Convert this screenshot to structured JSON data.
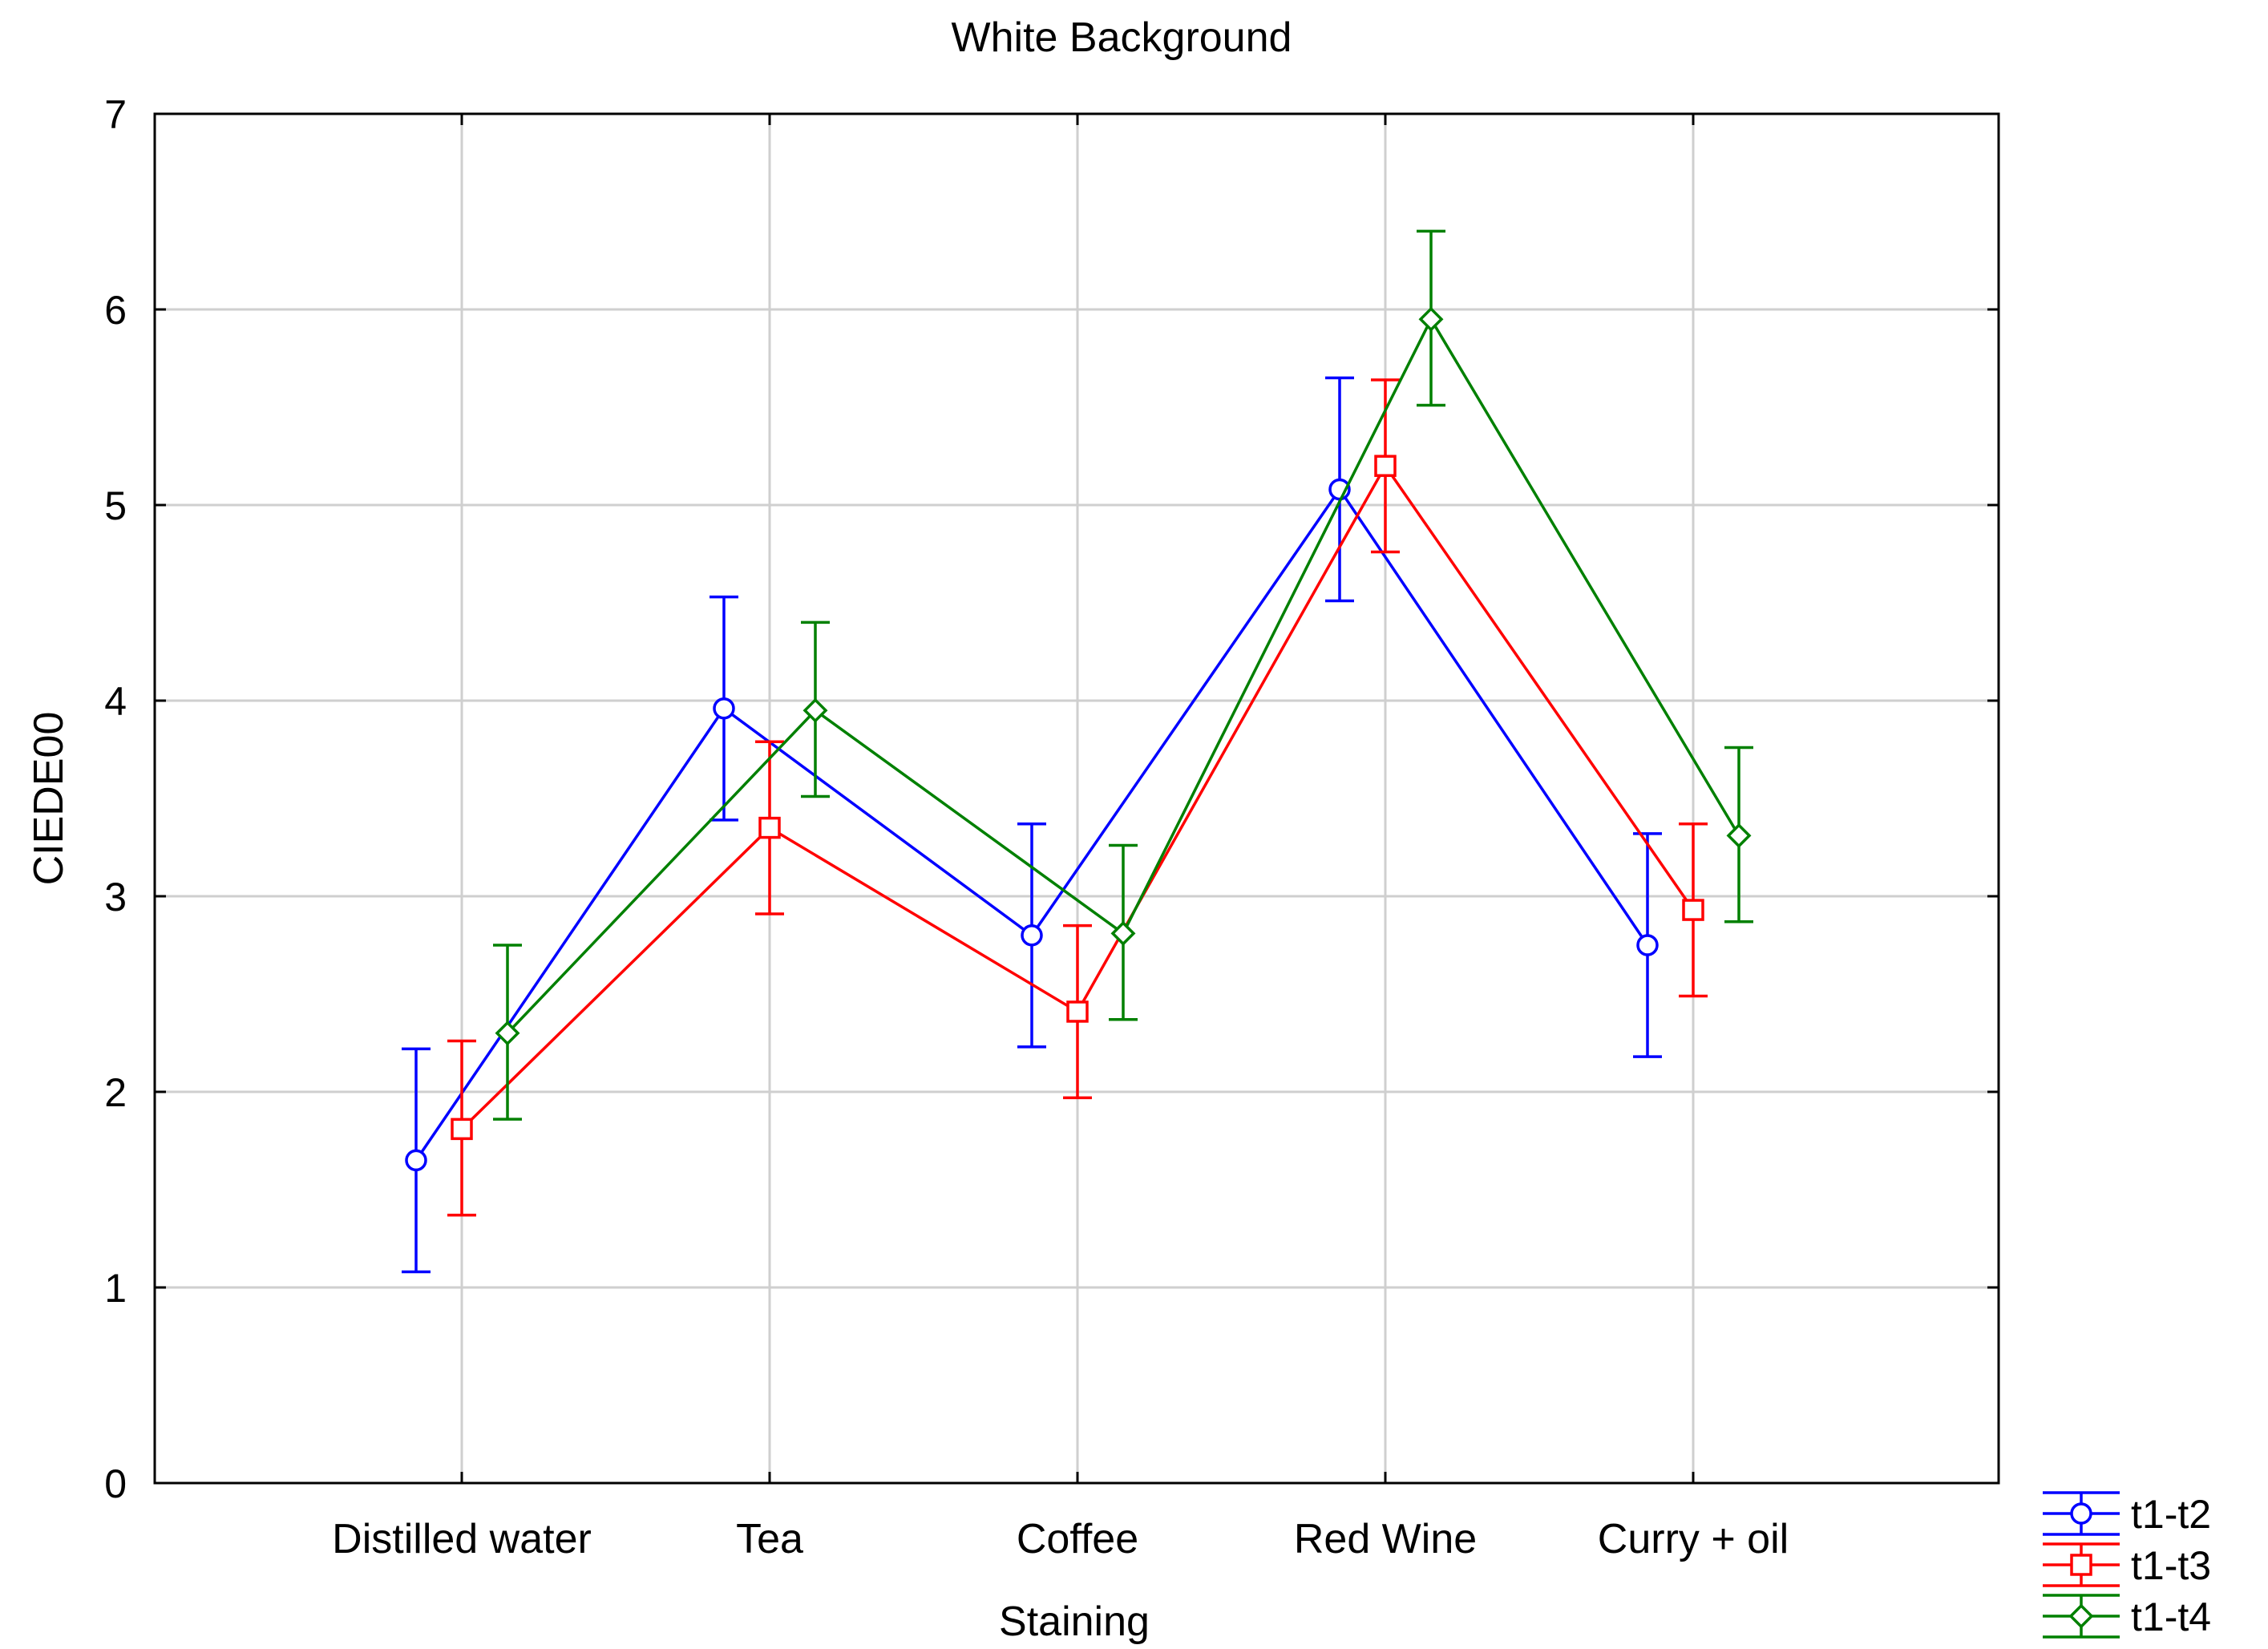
{
  "chart_data": {
    "type": "line",
    "title": "White Background",
    "xlabel": "Staining",
    "ylabel": "CIEDE00",
    "ylim": [
      0,
      7
    ],
    "yticks": [
      "0",
      "1",
      "2",
      "3",
      "4",
      "5",
      "6",
      "7"
    ],
    "grid": true,
    "legend_position": "bottom-right, outside plot",
    "categories": [
      "Distilled water",
      "Tea",
      "Coffee",
      "Red Wine",
      "Curry + oil"
    ],
    "series": [
      {
        "name": "t1-t2",
        "color": "#0000ff",
        "marker": "circle",
        "values": [
          1.65,
          3.96,
          2.8,
          5.08,
          2.75
        ],
        "lower": [
          1.08,
          3.39,
          2.23,
          4.51,
          2.18
        ],
        "upper": [
          2.22,
          4.53,
          3.37,
          5.65,
          3.32
        ]
      },
      {
        "name": "t1-t3",
        "color": "#ff0000",
        "marker": "square",
        "values": [
          1.81,
          3.35,
          2.41,
          5.2,
          2.93
        ],
        "lower": [
          1.37,
          2.91,
          1.97,
          4.76,
          2.49
        ],
        "upper": [
          2.26,
          3.79,
          2.85,
          5.64,
          3.37
        ]
      },
      {
        "name": "t1-t4",
        "color": "#008000",
        "marker": "diamond",
        "values": [
          2.3,
          3.95,
          2.81,
          5.95,
          3.31
        ],
        "lower": [
          1.86,
          3.51,
          2.37,
          5.51,
          2.87
        ],
        "upper": [
          2.75,
          4.4,
          3.26,
          6.4,
          3.76
        ]
      }
    ]
  }
}
